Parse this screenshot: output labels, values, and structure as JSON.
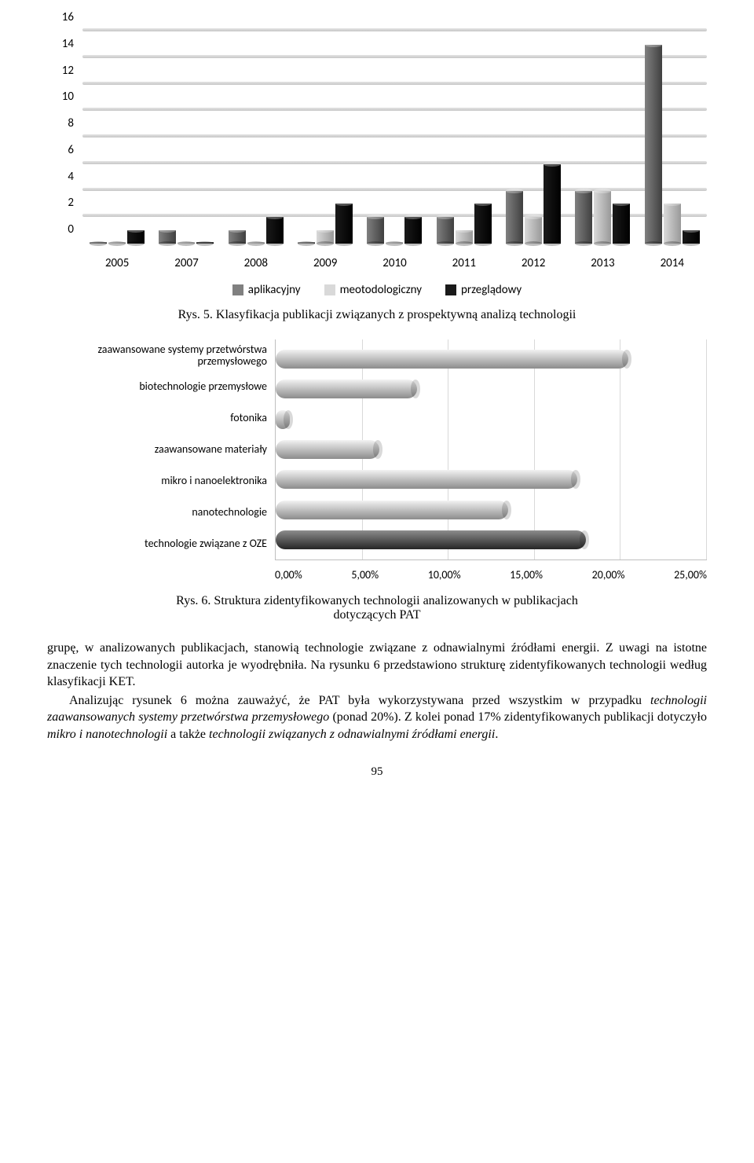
{
  "chart1": {
    "type": "bar3d-grouped",
    "ylim": [
      0,
      16
    ],
    "ytick_step": 2,
    "yticks": [
      0,
      2,
      4,
      6,
      8,
      10,
      12,
      14,
      16
    ],
    "categories": [
      "2005",
      "2007",
      "2008",
      "2009",
      "2010",
      "2011",
      "2012",
      "2013",
      "2014"
    ],
    "series": [
      {
        "name": "aplikacyjny",
        "color": "#808080"
      },
      {
        "name": "meotodologiczny",
        "color": "#d9d9d9"
      },
      {
        "name": "przeglądowy",
        "color": "#1a1a1a"
      }
    ],
    "values": [
      [
        0,
        0,
        1
      ],
      [
        1,
        0,
        0
      ],
      [
        1,
        0,
        2
      ],
      [
        0,
        1,
        3
      ],
      [
        2,
        0,
        2
      ],
      [
        2,
        1,
        3
      ],
      [
        4,
        2,
        6
      ],
      [
        4,
        4,
        3
      ],
      [
        15,
        3,
        1
      ]
    ],
    "background_color": "#ffffff",
    "grid_color": "#d9d9d9",
    "label_fontsize": 15,
    "font_family": "Calibri"
  },
  "caption1": "Rys. 5. Klasyfikacja publikacji związanych z prospektywną analizą technologii",
  "chart2": {
    "type": "hbar3d",
    "xlim": [
      0,
      25
    ],
    "xticks": [
      "0,00%",
      "5,00%",
      "10,00%",
      "15,00%",
      "20,00%",
      "25,00%"
    ],
    "categories": [
      "zaawansowane systemy przetwórstwa przemysłowego",
      "biotechnologie przemysłowe",
      "fotonika",
      "zaawansowane materiały",
      "mikro i nanoelektronika",
      "nanotechnologie",
      "technologie związane z OZE"
    ],
    "values": [
      20.5,
      8.2,
      0.8,
      6.0,
      17.5,
      13.5,
      18.0
    ],
    "colors": [
      "#bfbfbf",
      "#bfbfbf",
      "#bfbfbf",
      "#bfbfbf",
      "#bfbfbf",
      "#bfbfbf",
      "#595959"
    ],
    "last_bar_dark": "#404040",
    "grid_color": "#d9d9d9",
    "label_fontsize": 14,
    "font_family": "Calibri"
  },
  "caption2_l1": "Rys. 6. Struktura zidentyfikowanych technologii analizowanych w publikacjach",
  "caption2_l2": "dotyczących PAT",
  "para1_a": "grupę, w analizowanych publikacjach, stanowią technologie związane z odnawialnymi źródłami energii. Z uwagi na istotne znaczenie tych technologii autorka je wyodrębniła. Na rysunku 6 przedstawiono strukturę zidentyfikowanych technologii według klasyfikacji KET.",
  "para2_a": "Analizując rysunek 6 można zauważyć, że PAT była wykorzystywana przed wszystkim w przypadku ",
  "para2_em1": "technologii zaawansowanych systemy przetwórstwa przemysłowego",
  "para2_b": " (ponad 20%). Z kolei ponad 17% zidentyfikowanych publikacji dotyczyło ",
  "para2_em2": "mikro i nanotechnologii",
  "para2_c": " a także ",
  "para2_em3": "technologii związanych z odnawialnymi źródłami energii",
  "para2_d": ".",
  "page_number": "95"
}
